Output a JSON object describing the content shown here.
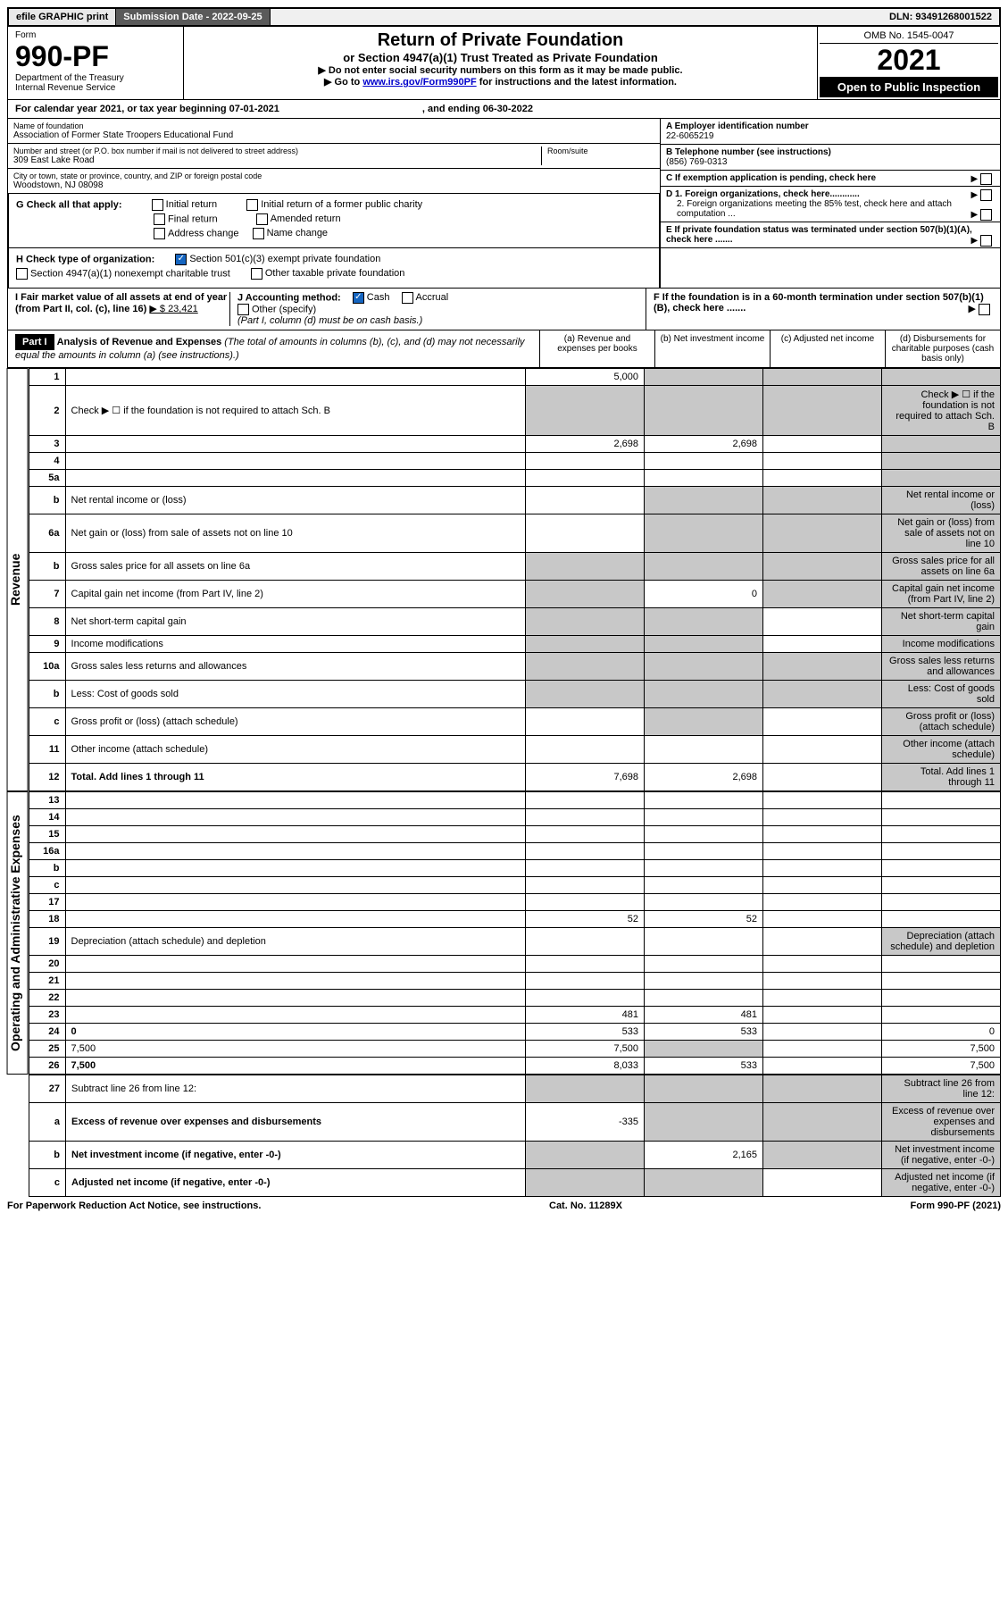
{
  "top": {
    "efile": "efile GRAPHIC print",
    "submission_label": "Submission Date - 2022-09-25",
    "dln": "DLN: 93491268001522"
  },
  "header": {
    "form_word": "Form",
    "form_number": "990-PF",
    "dept": "Department of the Treasury",
    "irs": "Internal Revenue Service",
    "title": "Return of Private Foundation",
    "subtitle": "or Section 4947(a)(1) Trust Treated as Private Foundation",
    "instr1": "▶ Do not enter social security numbers on this form as it may be made public.",
    "instr2_pre": "▶ Go to ",
    "instr2_link": "www.irs.gov/Form990PF",
    "instr2_post": " for instructions and the latest information.",
    "omb": "OMB No. 1545-0047",
    "year": "2021",
    "open": "Open to Public Inspection"
  },
  "calendar": {
    "text": "For calendar year 2021, or tax year beginning 07-01-2021",
    "ending": ", and ending 06-30-2022"
  },
  "name_block": {
    "name_label": "Name of foundation",
    "name": "Association of Former State Troopers Educational Fund",
    "addr_label": "Number and street (or P.O. box number if mail is not delivered to street address)",
    "room_label": "Room/suite",
    "addr": "309 East Lake Road",
    "city_label": "City or town, state or province, country, and ZIP or foreign postal code",
    "city": "Woodstown, NJ  08098"
  },
  "right_block": {
    "a_label": "A Employer identification number",
    "a_val": "22-6065219",
    "b_label": "B Telephone number (see instructions)",
    "b_val": "(856) 769-0313",
    "c_label": "C If exemption application is pending, check here",
    "d1_label": "D 1. Foreign organizations, check here............",
    "d2_label": "2. Foreign organizations meeting the 85% test, check here and attach computation ...",
    "e_label": "E If private foundation status was terminated under section 507(b)(1)(A), check here .......",
    "f_label": "F If the foundation is in a 60-month termination under section 507(b)(1)(B), check here ......."
  },
  "g": {
    "label": "G Check all that apply:",
    "initial": "Initial return",
    "initial_former": "Initial return of a former public charity",
    "final": "Final return",
    "amended": "Amended return",
    "addr_change": "Address change",
    "name_change": "Name change"
  },
  "h": {
    "label": "H Check type of organization:",
    "c3": "Section 501(c)(3) exempt private foundation",
    "nonexempt": "Section 4947(a)(1) nonexempt charitable trust",
    "other": "Other taxable private foundation"
  },
  "i": {
    "label": "I Fair market value of all assets at end of year (from Part II, col. (c), line 16)",
    "value": "▶ $  23,421"
  },
  "j": {
    "label": "J Accounting method:",
    "cash": "Cash",
    "accrual": "Accrual",
    "other": "Other (specify)",
    "note": "(Part I, column (d) must be on cash basis.)"
  },
  "part1": {
    "label": "Part I",
    "title": "Analysis of Revenue and Expenses",
    "desc": "(The total of amounts in columns (b), (c), and (d) may not necessarily equal the amounts in column (a) (see instructions).)",
    "col_a": "(a) Revenue and expenses per books",
    "col_b": "(b) Net investment income",
    "col_c": "(c) Adjusted net income",
    "col_d": "(d) Disbursements for charitable purposes (cash basis only)"
  },
  "side_rev": "Revenue",
  "side_exp": "Operating and Administrative Expenses",
  "rows": {
    "1": {
      "n": "1",
      "d": "",
      "a": "5,000",
      "b": "",
      "c": "",
      "shade_b": true,
      "shade_c": true,
      "shade_d": true
    },
    "2": {
      "n": "2",
      "d": "Check ▶ ☐ if the foundation is not required to attach Sch. B",
      "a": "",
      "shade_a": true,
      "shade_b": true,
      "shade_c": true,
      "shade_d": true
    },
    "3": {
      "n": "3",
      "d": "",
      "a": "2,698",
      "b": "2,698",
      "c": "",
      "shade_d": true
    },
    "4": {
      "n": "4",
      "d": "",
      "a": "",
      "b": "",
      "c": "",
      "shade_d": true
    },
    "5a": {
      "n": "5a",
      "d": "",
      "a": "",
      "b": "",
      "c": "",
      "shade_d": true
    },
    "5b": {
      "n": "b",
      "d": "Net rental income or (loss)",
      "a": "",
      "shade_a": false,
      "shade_b": true,
      "shade_c": true,
      "shade_d": true
    },
    "6a": {
      "n": "6a",
      "d": "Net gain or (loss) from sale of assets not on line 10",
      "a": "",
      "shade_b": true,
      "shade_c": true,
      "shade_d": true
    },
    "6b": {
      "n": "b",
      "d": "Gross sales price for all assets on line 6a",
      "shade_a": true,
      "shade_b": true,
      "shade_c": true,
      "shade_d": true
    },
    "7": {
      "n": "7",
      "d": "Capital gain net income (from Part IV, line 2)",
      "a": "",
      "b": "0",
      "shade_a": true,
      "shade_c": true,
      "shade_d": true
    },
    "8": {
      "n": "8",
      "d": "Net short-term capital gain",
      "shade_a": true,
      "shade_b": true,
      "c": "",
      "shade_d": true
    },
    "9": {
      "n": "9",
      "d": "Income modifications",
      "shade_a": true,
      "shade_b": true,
      "c": "",
      "shade_d": true
    },
    "10a": {
      "n": "10a",
      "d": "Gross sales less returns and allowances",
      "shade_a": true,
      "shade_b": true,
      "shade_c": true,
      "shade_d": true
    },
    "10b": {
      "n": "b",
      "d": "Less: Cost of goods sold",
      "shade_a": true,
      "shade_b": true,
      "shade_c": true,
      "shade_d": true
    },
    "10c": {
      "n": "c",
      "d": "Gross profit or (loss) (attach schedule)",
      "a": "",
      "shade_b": true,
      "c": "",
      "shade_d": true
    },
    "11": {
      "n": "11",
      "d": "Other income (attach schedule)",
      "a": "",
      "b": "",
      "c": "",
      "shade_d": true
    },
    "12": {
      "n": "12",
      "d": "Total. Add lines 1 through 11",
      "a": "7,698",
      "b": "2,698",
      "c": "",
      "shade_d": true,
      "bold": true
    },
    "13": {
      "n": "13",
      "d": "",
      "a": "",
      "b": "",
      "c": ""
    },
    "14": {
      "n": "14",
      "d": "",
      "a": "",
      "b": "",
      "c": ""
    },
    "15": {
      "n": "15",
      "d": "",
      "a": "",
      "b": "",
      "c": ""
    },
    "16a": {
      "n": "16a",
      "d": "",
      "a": "",
      "b": "",
      "c": ""
    },
    "16b": {
      "n": "b",
      "d": "",
      "a": "",
      "b": "",
      "c": ""
    },
    "16c": {
      "n": "c",
      "d": "",
      "a": "",
      "b": "",
      "c": ""
    },
    "17": {
      "n": "17",
      "d": "",
      "a": "",
      "b": "",
      "c": ""
    },
    "18": {
      "n": "18",
      "d": "",
      "a": "52",
      "b": "52",
      "c": ""
    },
    "19": {
      "n": "19",
      "d": "Depreciation (attach schedule) and depletion",
      "a": "",
      "b": "",
      "c": "",
      "shade_d": true
    },
    "20": {
      "n": "20",
      "d": "",
      "a": "",
      "b": "",
      "c": ""
    },
    "21": {
      "n": "21",
      "d": "",
      "a": "",
      "b": "",
      "c": ""
    },
    "22": {
      "n": "22",
      "d": "",
      "a": "",
      "b": "",
      "c": ""
    },
    "23": {
      "n": "23",
      "d": "",
      "a": "481",
      "b": "481",
      "c": ""
    },
    "24": {
      "n": "24",
      "d": "0",
      "a": "533",
      "b": "533",
      "c": "",
      "bold": true
    },
    "25": {
      "n": "25",
      "d": "7,500",
      "a": "7,500",
      "shade_b": true,
      "c": ""
    },
    "26": {
      "n": "26",
      "d": "7,500",
      "a": "8,033",
      "b": "533",
      "c": "",
      "bold": true
    },
    "27": {
      "n": "27",
      "d": "Subtract line 26 from line 12:",
      "shade_a": true,
      "shade_b": true,
      "shade_c": true,
      "shade_d": true
    },
    "27a": {
      "n": "a",
      "d": "Excess of revenue over expenses and disbursements",
      "a": "-335",
      "shade_b": true,
      "shade_c": true,
      "shade_d": true,
      "bold": true
    },
    "27b": {
      "n": "b",
      "d": "Net investment income (if negative, enter -0-)",
      "shade_a": true,
      "b": "2,165",
      "shade_c": true,
      "shade_d": true,
      "bold": true
    },
    "27c": {
      "n": "c",
      "d": "Adjusted net income (if negative, enter -0-)",
      "shade_a": true,
      "shade_b": true,
      "c": "",
      "shade_d": true,
      "bold": true
    }
  },
  "footer": {
    "left": "For Paperwork Reduction Act Notice, see instructions.",
    "center": "Cat. No. 11289X",
    "right": "Form 990-PF (2021)"
  }
}
